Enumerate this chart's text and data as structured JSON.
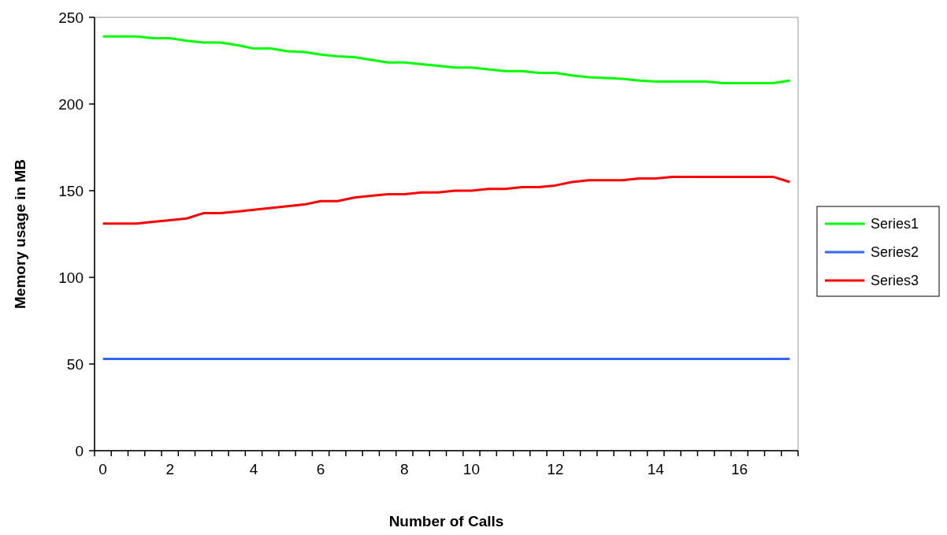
{
  "chart_data": {
    "type": "line",
    "xlabel": "Number of Calls",
    "ylabel": "Memory usage in MB",
    "categories": [
      "0",
      null,
      null,
      null,
      "2",
      null,
      null,
      null,
      null,
      "4",
      null,
      null,
      null,
      "6",
      null,
      null,
      null,
      null,
      "8",
      null,
      null,
      null,
      "10",
      null,
      null,
      null,
      null,
      "12",
      null,
      null,
      null,
      null,
      null,
      "14",
      null,
      null,
      null,
      null,
      "16",
      null,
      null,
      null
    ],
    "series": [
      {
        "name": "Series1",
        "color": "#00ff00",
        "values": [
          239,
          239,
          239,
          238,
          238,
          236.5,
          235.5,
          235.5,
          234,
          232,
          232,
          230.5,
          230,
          228.5,
          227.5,
          227,
          225.5,
          224,
          224,
          223,
          222,
          221,
          221,
          220,
          219,
          219,
          218,
          218,
          216.5,
          215.5,
          215,
          214.5,
          213.5,
          213,
          213,
          213,
          213,
          212,
          212,
          212,
          212,
          213.5
        ]
      },
      {
        "name": "Series2",
        "color": "#3366ff",
        "values": [
          53,
          53,
          53,
          53,
          53,
          53,
          53,
          53,
          53,
          53,
          53,
          53,
          53,
          53,
          53,
          53,
          53,
          53,
          53,
          53,
          53,
          53,
          53,
          53,
          53,
          53,
          53,
          53,
          53,
          53,
          53,
          53,
          53,
          53,
          53,
          53,
          53,
          53,
          53,
          53,
          53,
          53
        ]
      },
      {
        "name": "Series3",
        "color": "#ff0000",
        "values": [
          131,
          131,
          131,
          132,
          133,
          134,
          137,
          137,
          138,
          139,
          140,
          141,
          142,
          144,
          144,
          146,
          147,
          148,
          148,
          149,
          149,
          150,
          150,
          151,
          151,
          152,
          152,
          153,
          155,
          156,
          156,
          156,
          157,
          157,
          158,
          158,
          158,
          158,
          158,
          158,
          158,
          155
        ]
      }
    ],
    "ylim": [
      0,
      250
    ],
    "yticks": [
      0,
      50,
      100,
      150,
      200,
      250
    ],
    "grid": false,
    "legend": "right",
    "marker": "none",
    "line_style": "solid"
  }
}
